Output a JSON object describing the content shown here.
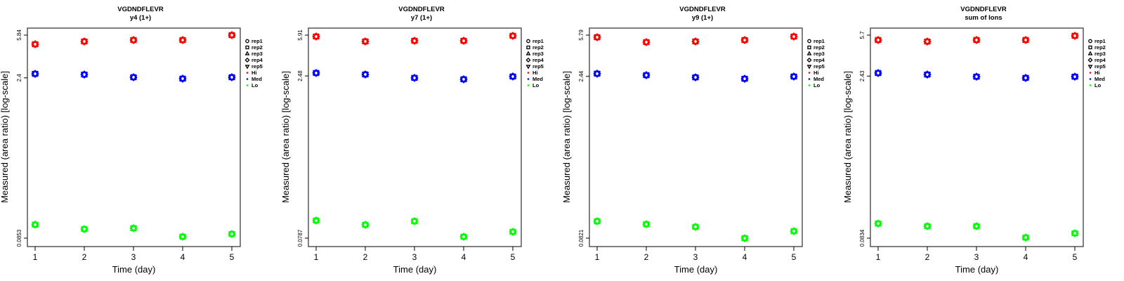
{
  "chart_data": [
    {
      "type": "scatter",
      "title": "VGDNDFLEVR",
      "subtitle": "y4 (1+)",
      "xlabel": "Time (day)",
      "ylabel": "Measured (area ratio) [log-scale]",
      "x": [
        1,
        2,
        3,
        4,
        5
      ],
      "x_ticks": [
        "1",
        "2",
        "3",
        "4",
        "5"
      ],
      "y_scale": "log",
      "y_ticks": [
        "5.84",
        "2.4",
        "0.0853"
      ],
      "ylim": [
        0.0853,
        5.84
      ],
      "series": [
        {
          "name": "Hi",
          "color": "#ff0000",
          "values": [
            4.83,
            5.12,
            5.27,
            5.27,
            5.84
          ]
        },
        {
          "name": "Med",
          "color": "#0000ff",
          "values": [
            2.61,
            2.57,
            2.43,
            2.36,
            2.43
          ]
        },
        {
          "name": "Lo",
          "color": "#00ff00",
          "values": [
            0.113,
            0.103,
            0.105,
            0.088,
            0.093
          ]
        }
      ]
    },
    {
      "type": "scatter",
      "title": "VGDNDFLEVR",
      "subtitle": "y7 (1+)",
      "xlabel": "Time (day)",
      "ylabel": "Measured (area ratio) [log-scale]",
      "x": [
        1,
        2,
        3,
        4,
        5
      ],
      "x_ticks": [
        "1",
        "2",
        "3",
        "4",
        "5"
      ],
      "y_scale": "log",
      "y_ticks": [
        "5.91",
        "2.48",
        "0.0787"
      ],
      "ylim": [
        0.0787,
        5.91
      ],
      "series": [
        {
          "name": "Hi",
          "color": "#ff0000",
          "values": [
            5.74,
            5.17,
            5.24,
            5.24,
            5.82
          ]
        },
        {
          "name": "Med",
          "color": "#0000ff",
          "values": [
            2.64,
            2.56,
            2.38,
            2.31,
            2.45
          ]
        },
        {
          "name": "Lo",
          "color": "#00ff00",
          "values": [
            0.1145,
            0.1046,
            0.1128,
            0.0811,
            0.0901
          ]
        }
      ]
    },
    {
      "type": "scatter",
      "title": "VGDNDFLEVR",
      "subtitle": "y9 (1+)",
      "xlabel": "Time (day)",
      "ylabel": "Measured (area ratio) [log-scale]",
      "x": [
        1,
        2,
        3,
        4,
        5
      ],
      "x_ticks": [
        "1",
        "2",
        "3",
        "4",
        "5"
      ],
      "y_scale": "log",
      "y_ticks": [
        "5.79",
        "2.44",
        "0.0821"
      ],
      "ylim": [
        0.0821,
        5.79
      ],
      "series": [
        {
          "name": "Hi",
          "color": "#ff0000",
          "values": [
            5.54,
            5.0,
            5.07,
            5.22,
            5.62
          ]
        },
        {
          "name": "Med",
          "color": "#0000ff",
          "values": [
            2.58,
            2.5,
            2.39,
            2.32,
            2.43
          ]
        },
        {
          "name": "Lo",
          "color": "#00ff00",
          "values": [
            0.117,
            0.11,
            0.104,
            0.082,
            0.095
          ]
        }
      ]
    },
    {
      "type": "scatter",
      "title": "VGDNDFLEVR",
      "subtitle": "sum of Ions",
      "xlabel": "Time (day)",
      "ylabel": "Measured (area ratio) [log-scale]",
      "x": [
        1,
        2,
        3,
        4,
        5
      ],
      "x_ticks": [
        "1",
        "2",
        "3",
        "4",
        "5"
      ],
      "y_scale": "log",
      "y_ticks": [
        "5.7",
        "2.43",
        "0.0834"
      ],
      "ylim": [
        0.0834,
        5.7
      ],
      "series": [
        {
          "name": "Hi",
          "color": "#ff0000",
          "values": [
            5.15,
            4.99,
            5.15,
            5.15,
            5.62
          ]
        },
        {
          "name": "Med",
          "color": "#0000ff",
          "values": [
            2.59,
            2.51,
            2.4,
            2.34,
            2.4
          ]
        },
        {
          "name": "Lo",
          "color": "#00ff00",
          "values": [
            0.113,
            0.107,
            0.107,
            0.0845,
            0.0923
          ]
        }
      ]
    }
  ],
  "legend": {
    "position": "right",
    "replicates": [
      {
        "label": "rep1",
        "symbol": "circle"
      },
      {
        "label": "rep2",
        "symbol": "square"
      },
      {
        "label": "rep3",
        "symbol": "triangle-up"
      },
      {
        "label": "rep4",
        "symbol": "diamond"
      },
      {
        "label": "rep5",
        "symbol": "triangle-down"
      }
    ],
    "groups": [
      {
        "label": "Hi",
        "color": "#ff0000"
      },
      {
        "label": "Med",
        "color": "#0000ff"
      },
      {
        "label": "Lo",
        "color": "#00ff00"
      }
    ]
  }
}
